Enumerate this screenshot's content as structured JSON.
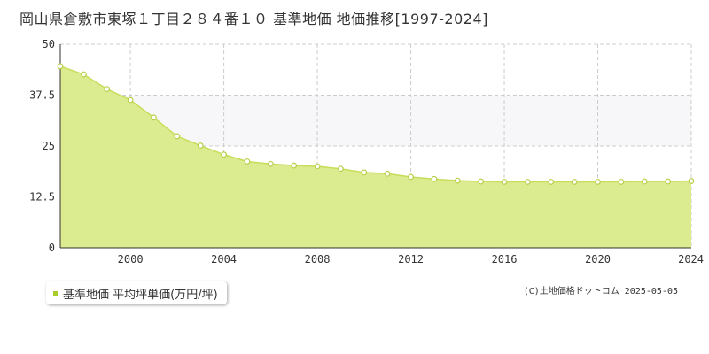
{
  "chart_data": {
    "type": "area",
    "title": "岡山県倉敷市東塚１丁目２８４番１０ 基準地価 地価推移[1997-2024]",
    "x": [
      1997,
      1998,
      1999,
      2000,
      2001,
      2002,
      2003,
      2004,
      2005,
      2006,
      2007,
      2008,
      2009,
      2010,
      2011,
      2012,
      2013,
      2014,
      2015,
      2016,
      2017,
      2018,
      2019,
      2020,
      2021,
      2022,
      2023,
      2024
    ],
    "series": [
      {
        "name": "基準地価 平均坪単価(万円/坪)",
        "values": [
          44.6,
          42.6,
          39.0,
          36.3,
          32.0,
          27.4,
          25.1,
          22.9,
          21.2,
          20.6,
          20.2,
          20.0,
          19.4,
          18.5,
          18.2,
          17.4,
          16.9,
          16.5,
          16.3,
          16.2,
          16.2,
          16.2,
          16.2,
          16.2,
          16.2,
          16.3,
          16.3,
          16.4
        ]
      }
    ],
    "xlim": [
      1997,
      2024
    ],
    "ylim": [
      0,
      50
    ],
    "x_tick_labels": [
      "2000",
      "2004",
      "2008",
      "2012",
      "2016",
      "2020",
      "2024"
    ],
    "y_tick_labels": [
      "0",
      "12.5",
      "25",
      "37.5",
      "50"
    ],
    "grid": true,
    "legend_position": "bottom-left"
  },
  "colors": {
    "area_fill": "#dbeb8f",
    "line": "#c8dd5a",
    "marker_stroke": "#b8cf4a",
    "legend_swatch": "#a8cc2c",
    "band": "#f7f7f9",
    "grid": "#cccccc"
  },
  "copyright": "(C)土地価格ドットコム 2025-05-05"
}
